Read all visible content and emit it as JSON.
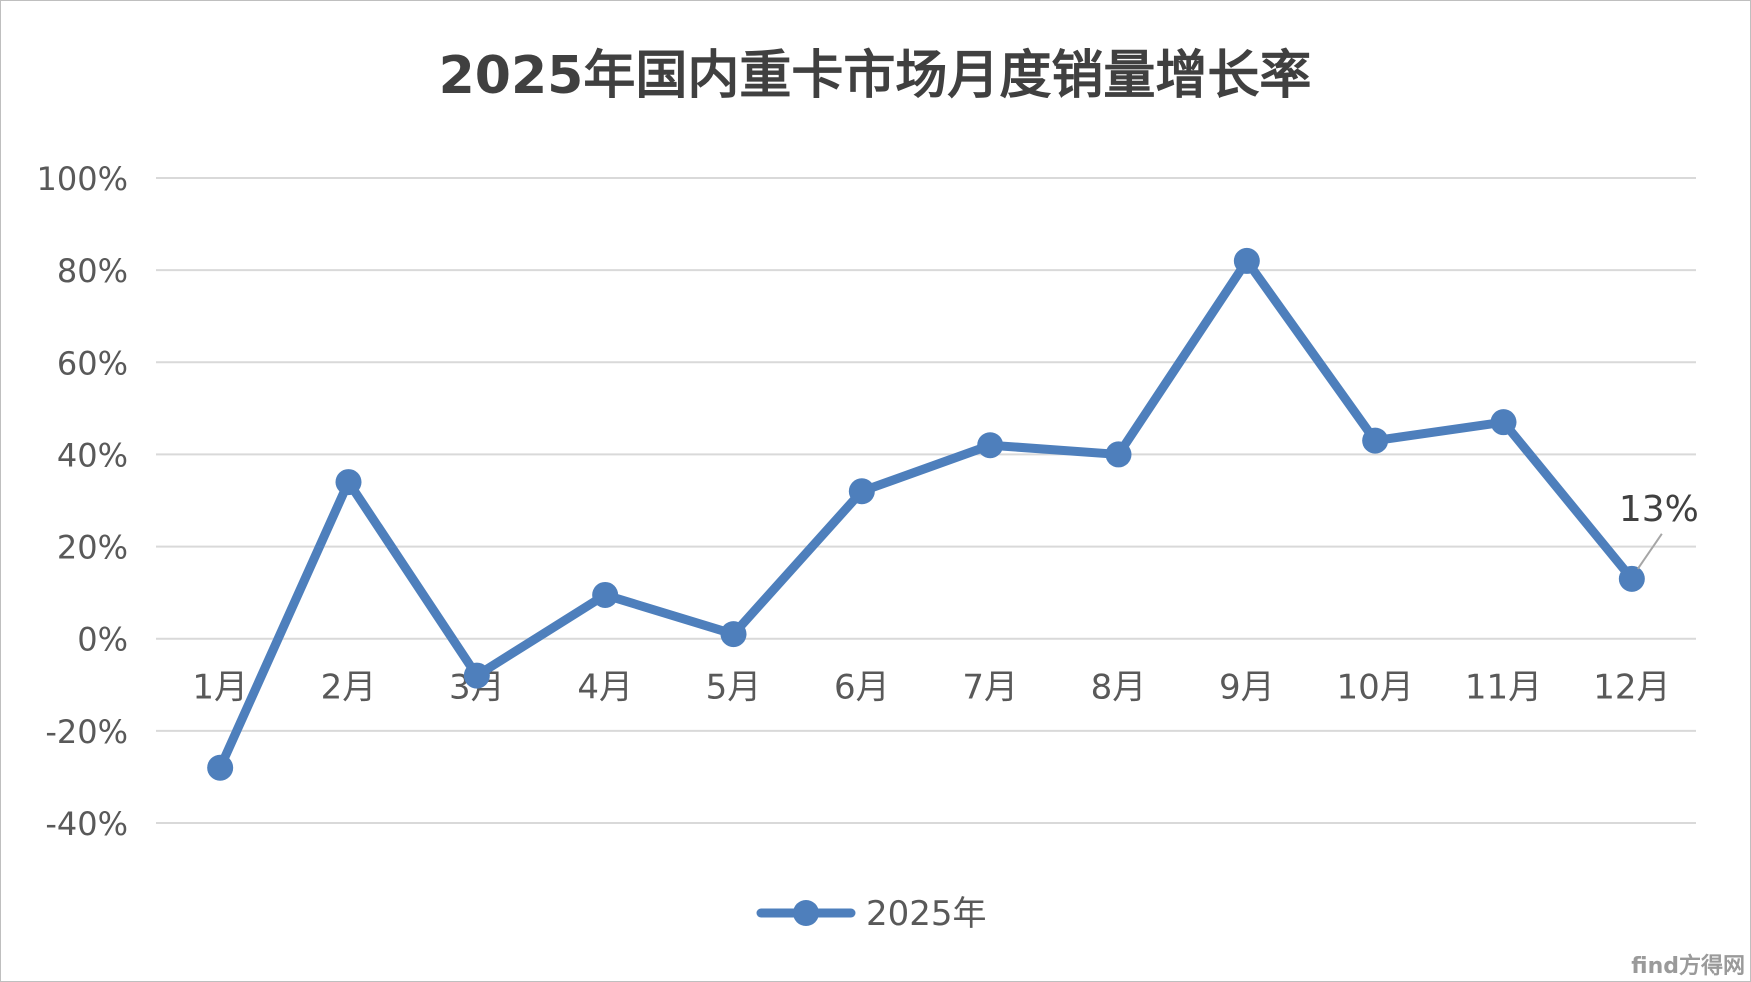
{
  "chart_data": {
    "type": "line",
    "title": "2025年国内重卡市场月度销量增长率",
    "categories": [
      "1月",
      "2月",
      "3月",
      "4月",
      "5月",
      "6月",
      "7月",
      "8月",
      "9月",
      "10月",
      "11月",
      "12月"
    ],
    "series": [
      {
        "name": "2025年",
        "color": "#4e7fbc",
        "values": [
          -28,
          34,
          -8,
          9.5,
          1,
          32,
          42,
          40,
          82,
          43,
          47,
          13
        ]
      }
    ],
    "y_ticks": [
      "100%",
      "80%",
      "60%",
      "40%",
      "20%",
      "0%",
      "-20%",
      "-40%"
    ],
    "ylim": [
      -40,
      100
    ],
    "y_step": 20,
    "grid": true,
    "legend_position": "bottom",
    "annotations": [
      {
        "index": 11,
        "text": "13%"
      }
    ]
  },
  "watermark": {
    "text": "find方得网"
  }
}
